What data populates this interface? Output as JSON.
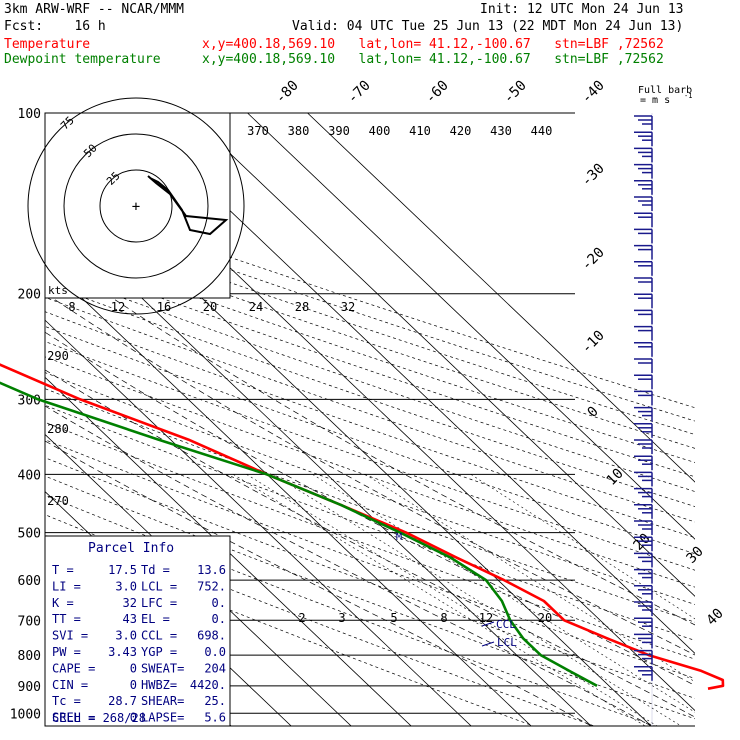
{
  "header": {
    "model": "3km ARW-WRF -- NCAR/MMM",
    "init": "Init: 12 UTC Mon 24 Jun 13",
    "fcst": "Fcst:    16 h",
    "valid": "Valid: 04 UTC Tue 25 Jun 13 (22 MDT Mon 24 Jun 13)",
    "temp_label": "Temperature",
    "dew_label": "Dewpoint temperature",
    "temp_coords": "x,y=400.18,569.10   lat,lon= 41.12,-100.67   stn=LBF ,72562",
    "dew_coords": "x,y=400.18,569.10   lat,lon= 41.12,-100.67   stn=LBF ,72562",
    "full_barb": "Full barb",
    "barb_units": "= m s",
    "barb_units_exp": "-1",
    "hodo_units": "kts"
  },
  "colors": {
    "temperature": "#ff0000",
    "dewpoint": "#008000",
    "panel_text": "#000080",
    "barbs": "#1a1a8c"
  },
  "chart_data": {
    "type": "line",
    "y_axis": "pressure_hPa",
    "pressure_ticks": [
      "100",
      "200",
      "300",
      "400",
      "500",
      "600",
      "700",
      "800",
      "900",
      "1000"
    ],
    "isotherm_labels": [
      "-80",
      "-70",
      "-60",
      "-50",
      "-40",
      "-30",
      "-20",
      "-10",
      "0",
      "10",
      "20",
      "30",
      "40"
    ],
    "theta_labels_top": [
      "370",
      "380",
      "390",
      "400",
      "410",
      "420",
      "430",
      "440"
    ],
    "theta_labels_left": [
      "290",
      "280",
      "270"
    ],
    "mixing_ratio_labels_upper": [
      "8",
      "12",
      "16",
      "20",
      "24",
      "28",
      "32"
    ],
    "mixing_ratio_labels_lower": [
      "2",
      "3",
      "5",
      "8",
      "12",
      "20"
    ],
    "series": [
      {
        "name": "Temperature",
        "key": "temp",
        "points": [
          [
            100,
            -53
          ],
          [
            130,
            -55
          ],
          [
            170,
            -57
          ],
          [
            200,
            -54
          ],
          [
            250,
            -48
          ],
          [
            300,
            -38
          ],
          [
            350,
            -27
          ],
          [
            400,
            -20
          ],
          [
            450,
            -13
          ],
          [
            500,
            -7
          ],
          [
            550,
            -3
          ],
          [
            600,
            1
          ],
          [
            650,
            4
          ],
          [
            700,
            4
          ],
          [
            750,
            8
          ],
          [
            800,
            12
          ],
          [
            850,
            18
          ],
          [
            880,
            20
          ],
          [
            900,
            19
          ],
          [
            910,
            16
          ]
        ]
      },
      {
        "name": "Dewpoint temperature",
        "key": "dew",
        "points": [
          [
            100,
            -82
          ],
          [
            130,
            -77
          ],
          [
            150,
            -75
          ],
          [
            170,
            -73
          ],
          [
            200,
            -65
          ],
          [
            250,
            -55
          ],
          [
            300,
            -45
          ],
          [
            350,
            -32
          ],
          [
            400,
            -20
          ],
          [
            450,
            -13
          ],
          [
            500,
            -8
          ],
          [
            550,
            -4
          ],
          [
            600,
            -2
          ],
          [
            650,
            -3
          ],
          [
            700,
            -5
          ],
          [
            750,
            -6
          ],
          [
            800,
            -6
          ],
          [
            850,
            -4
          ],
          [
            900,
            -2
          ]
        ]
      }
    ],
    "levels": {
      "CCL": "CCL",
      "LCL": "LCL",
      "M": "M"
    }
  },
  "hodograph": {
    "rings": [
      "25",
      "50",
      "75"
    ],
    "path": [
      [
        28,
        -12
      ],
      [
        -8,
        -16
      ],
      [
        -15,
        -2
      ],
      [
        -12,
        12
      ],
      [
        4,
        28
      ],
      [
        18,
        40
      ],
      [
        14,
        20
      ],
      [
        6,
        8
      ]
    ]
  },
  "parcel_info": {
    "title": "Parcel Info",
    "rows": [
      [
        "T  =",
        "17.5",
        "Td =",
        "13.6"
      ],
      [
        "LI =",
        "3.0",
        "LCL =",
        "752."
      ],
      [
        "K  =",
        "32",
        "LFC =",
        "0."
      ],
      [
        "TT =",
        "43",
        "EL  =",
        "0."
      ],
      [
        "SVI =",
        "3.0",
        "CCL =",
        "698."
      ],
      [
        "PW =",
        "3.43",
        "YGP =",
        "0.0"
      ],
      [
        "CAPE =",
        "0",
        "SWEAT=",
        "204"
      ],
      [
        "CIN  =",
        "0",
        "HWBZ=",
        "4420."
      ],
      [
        "Tc  =",
        "28.7",
        "SHEAR=",
        "25."
      ],
      [
        "SREH =",
        "0",
        "LAPSE=",
        "5.6"
      ]
    ],
    "cell": "CELL = 268/28"
  },
  "wind_barbs": {
    "levels": [
      120,
      135,
      150,
      165,
      180,
      195,
      210,
      225,
      240,
      255,
      270,
      285,
      300,
      315,
      330,
      345,
      360,
      380,
      400,
      420,
      440,
      460,
      480,
      500,
      520,
      540,
      560,
      580,
      600,
      620,
      640,
      660,
      680,
      700,
      720
    ]
  }
}
